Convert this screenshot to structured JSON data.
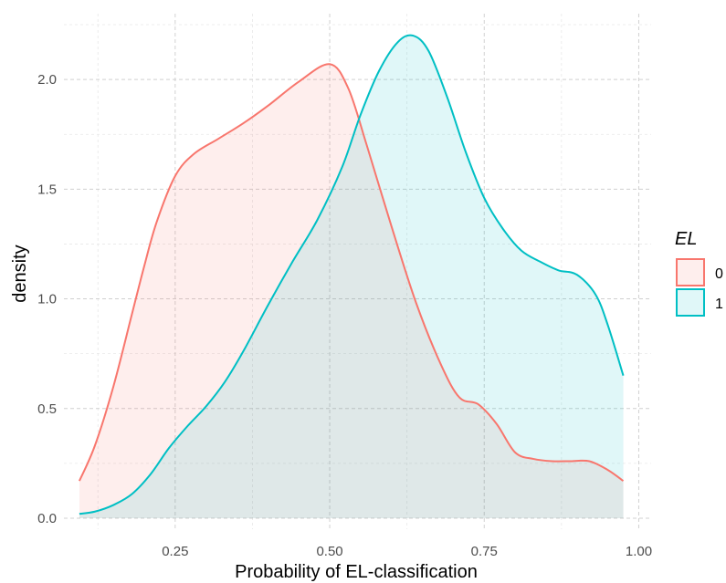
{
  "chart_data": {
    "type": "area",
    "xlabel": "Probability of EL-classification",
    "ylabel": "density",
    "xlim": [
      0.07,
      1.02
    ],
    "ylim": [
      -0.05,
      2.3
    ],
    "x_ticks": [
      0.25,
      0.5,
      0.75,
      1.0
    ],
    "x_tick_labels": [
      "0.25",
      "0.50",
      "0.75",
      "1.00"
    ],
    "y_ticks": [
      0.0,
      0.5,
      1.0,
      1.5,
      2.0
    ],
    "y_tick_labels": [
      "0.0",
      "0.5",
      "1.0",
      "1.5",
      "2.0"
    ],
    "grid": true,
    "legend": {
      "title": "EL",
      "position": "right"
    },
    "series": [
      {
        "name": "0",
        "line_color": "#F8766D",
        "fill_color": "#F8766D",
        "fill_opacity": 0.12,
        "x": [
          0.095,
          0.12,
          0.15,
          0.18,
          0.2,
          0.22,
          0.25,
          0.28,
          0.32,
          0.36,
          0.4,
          0.45,
          0.5,
          0.53,
          0.56,
          0.6,
          0.64,
          0.68,
          0.71,
          0.74,
          0.77,
          0.8,
          0.83,
          0.86,
          0.89,
          0.92,
          0.95,
          0.975
        ],
        "y": [
          0.17,
          0.33,
          0.6,
          0.93,
          1.15,
          1.35,
          1.56,
          1.66,
          1.73,
          1.8,
          1.88,
          1.99,
          2.07,
          1.96,
          1.7,
          1.33,
          0.98,
          0.7,
          0.55,
          0.52,
          0.43,
          0.3,
          0.27,
          0.26,
          0.26,
          0.26,
          0.22,
          0.17
        ]
      },
      {
        "name": "1",
        "line_color": "#00BFC4",
        "fill_color": "#00BFC4",
        "fill_opacity": 0.12,
        "x": [
          0.095,
          0.12,
          0.15,
          0.18,
          0.21,
          0.24,
          0.27,
          0.3,
          0.33,
          0.36,
          0.4,
          0.44,
          0.48,
          0.52,
          0.55,
          0.58,
          0.61,
          0.635,
          0.66,
          0.69,
          0.72,
          0.75,
          0.78,
          0.81,
          0.84,
          0.87,
          0.9,
          0.93,
          0.95,
          0.975
        ],
        "y": [
          0.02,
          0.03,
          0.06,
          0.11,
          0.2,
          0.32,
          0.42,
          0.51,
          0.62,
          0.76,
          0.97,
          1.17,
          1.36,
          1.6,
          1.84,
          2.04,
          2.17,
          2.2,
          2.13,
          1.92,
          1.67,
          1.46,
          1.32,
          1.22,
          1.17,
          1.13,
          1.11,
          1.02,
          0.88,
          0.65
        ]
      }
    ]
  }
}
